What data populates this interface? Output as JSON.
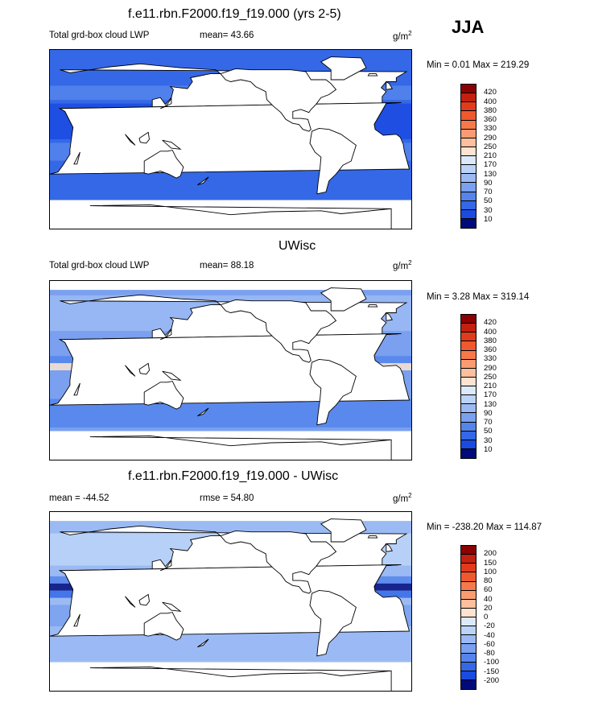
{
  "season": "JJA",
  "panels": [
    {
      "id": "model",
      "title": "f.e11.rbn.F2000.f19_f19.000 (yrs 2-5)",
      "subtitle": "Total grd-box cloud LWP",
      "stat_text": "mean=  43.66",
      "units": "g/m",
      "units_sup": "2",
      "minmax": "Min =   0.01 Max = 219.29",
      "colorbar": {
        "labels": [
          "420",
          "400",
          "380",
          "360",
          "330",
          "290",
          "250",
          "210",
          "170",
          "130",
          "90",
          "70",
          "50",
          "30",
          "10"
        ],
        "colors": [
          "#8b0000",
          "#c4200f",
          "#e23b1c",
          "#f0592e",
          "#f7794a",
          "#fa9c72",
          "#fdbf9e",
          "#fde3d0",
          "#dbe9fb",
          "#bcd3f8",
          "#9bbaf4",
          "#7aa0ef",
          "#5585ec",
          "#3568e6",
          "#1a4be0",
          "#000a7a"
        ]
      },
      "map_style": "dark"
    },
    {
      "id": "obs",
      "title": "UWisc",
      "subtitle": "Total grd-box cloud LWP",
      "stat_text": "mean=  88.18",
      "units": "g/m",
      "units_sup": "2",
      "minmax": "Min =   3.28 Max = 319.14",
      "colorbar": {
        "labels": [
          "420",
          "400",
          "380",
          "360",
          "330",
          "290",
          "250",
          "210",
          "170",
          "130",
          "90",
          "70",
          "50",
          "30",
          "10"
        ],
        "colors": [
          "#8b0000",
          "#c4200f",
          "#e23b1c",
          "#f0592e",
          "#f7794a",
          "#fa9c72",
          "#fdbf9e",
          "#fde3d0",
          "#dbe9fb",
          "#bcd3f8",
          "#9bbaf4",
          "#7aa0ef",
          "#5585ec",
          "#3568e6",
          "#1a4be0",
          "#000a7a"
        ]
      },
      "map_style": "light"
    },
    {
      "id": "diff",
      "title": "f.e11.rbn.F2000.f19_f19.000 - UWisc",
      "subtitle": "mean = -44.52",
      "stat_text": "rmse =  54.80",
      "units": "g/m",
      "units_sup": "2",
      "minmax": "Min = -238.20 Max = 114.87",
      "colorbar": {
        "labels": [
          "200",
          "150",
          "100",
          "80",
          "60",
          "40",
          "20",
          "0",
          "-20",
          "-40",
          "-60",
          "-80",
          "-100",
          "-150",
          "-200"
        ],
        "colors": [
          "#8b0000",
          "#c4200f",
          "#e23b1c",
          "#f0592e",
          "#f7794a",
          "#fa9c72",
          "#fdbf9e",
          "#fde3d0",
          "#dbe9fb",
          "#bcd3f8",
          "#9bbaf4",
          "#7aa0ef",
          "#5585ec",
          "#3568e6",
          "#1a4be0",
          "#000a7a"
        ]
      },
      "map_style": "diff"
    }
  ]
}
